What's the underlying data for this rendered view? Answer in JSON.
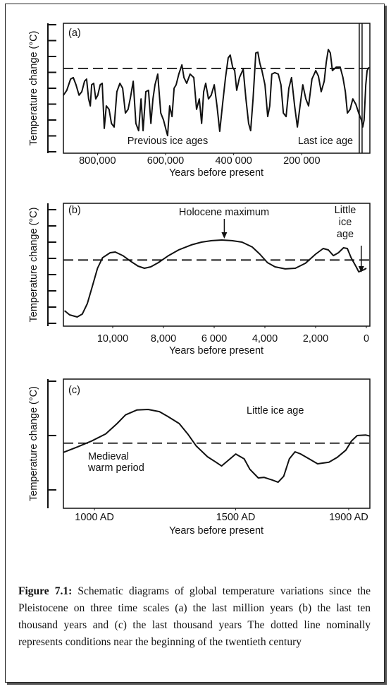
{
  "chart_data": [
    {
      "type": "line",
      "panel": "(a)",
      "ylabel": "Temperature change (°C)",
      "xlabel": "Years before present",
      "color": "#111111",
      "xlim": [
        900000,
        0
      ],
      "ylim": [
        0,
        8
      ],
      "xticks": [
        {
          "value": 800000,
          "label": "800,000"
        },
        {
          "value": 600000,
          "label": "600,000"
        },
        {
          "value": 400000,
          "label": "400 000"
        },
        {
          "value": 200000,
          "label": "200 000"
        }
      ],
      "yticks": [
        0,
        1,
        2,
        3,
        4,
        5,
        6,
        7,
        8
      ],
      "reference_y": 5.25,
      "vline_x": 27000,
      "annotations": [
        {
          "text": "Previous ice ages"
        },
        {
          "text": "Last ice age"
        }
      ],
      "x": [
        900000,
        890000,
        879000,
        871000,
        863000,
        854000,
        846000,
        838000,
        832000,
        826000,
        821000,
        817000,
        811000,
        805000,
        799000,
        792000,
        786000,
        780000,
        774000,
        766000,
        759000,
        751000,
        743000,
        734000,
        726000,
        718000,
        710000,
        703000,
        695000,
        687000,
        679000,
        672000,
        666000,
        658000,
        650000,
        643000,
        637000,
        631000,
        623000,
        614000,
        606000,
        598000,
        594000,
        588000,
        581000,
        575000,
        569000,
        561000,
        552000,
        546000,
        538000,
        528000,
        517000,
        509000,
        501000,
        494000,
        488000,
        482000,
        474000,
        466000,
        457000,
        449000,
        441000,
        432000,
        424000,
        416000,
        410000,
        403000,
        397000,
        391000,
        383000,
        372000,
        364000,
        356000,
        350000,
        343000,
        335000,
        329000,
        323000,
        317000,
        308000,
        300000,
        294000,
        288000,
        279000,
        269000,
        261000,
        254000,
        246000,
        238000,
        230000,
        221000,
        213000,
        205000,
        197000,
        188000,
        180000,
        170000,
        159000,
        151000,
        143000,
        134000,
        128000,
        122000,
        116000,
        110000,
        99000,
        87000,
        79000,
        72000,
        66000,
        58000,
        50000,
        41000,
        33000,
        25000,
        21000,
        17000,
        12000,
        8000,
        2000
      ],
      "values": [
        3.56,
        3.87,
        4.58,
        4.67,
        4.22,
        3.56,
        3.78,
        4.44,
        4.58,
        3.33,
        2.89,
        4.22,
        4.31,
        3.33,
        3.56,
        4.22,
        4.31,
        1.47,
        2.89,
        2.67,
        1.78,
        1.56,
        3.78,
        4.31,
        4.0,
        2.44,
        2.67,
        3.42,
        4.44,
        1.78,
        1.33,
        3.33,
        1.33,
        3.78,
        3.87,
        1.78,
        3.33,
        4.22,
        4.89,
        2.44,
        2.0,
        1.33,
        1.02,
        2.89,
        2.22,
        4.0,
        4.22,
        4.89,
        5.47,
        4.67,
        4.31,
        4.89,
        4.67,
        2.67,
        3.33,
        1.78,
        3.78,
        4.31,
        3.33,
        3.56,
        4.22,
        2.89,
        1.29,
        3.11,
        4.67,
        5.91,
        6.09,
        5.33,
        5.11,
        3.87,
        4.67,
        5.2,
        3.33,
        1.78,
        1.33,
        3.33,
        6.22,
        6.27,
        5.56,
        5.11,
        4.22,
        2.22,
        2.89,
        4.89,
        4.98,
        4.89,
        4.22,
        2.44,
        2.22,
        4.0,
        4.67,
        2.89,
        1.56,
        2.89,
        4.22,
        3.33,
        2.89,
        4.58,
        5.11,
        4.76,
        3.78,
        4.44,
        5.64,
        6.44,
        6.22,
        5.11,
        5.33,
        5.33,
        4.67,
        3.78,
        2.44,
        2.67,
        3.33,
        2.98,
        2.44,
        2.0,
        1.56,
        2.0,
        4.22,
        5.11,
        5.33
      ]
    },
    {
      "type": "line",
      "panel": "(b)",
      "ylabel": "Temperature change (°C)",
      "xlabel": "Years before present",
      "color": "#111111",
      "xlim": [
        12000,
        0
      ],
      "ylim": [
        0,
        7
      ],
      "xticks": [
        {
          "value": 10000,
          "label": "10,000"
        },
        {
          "value": 8000,
          "label": "8,000"
        },
        {
          "value": 6000,
          "label": "6 000"
        },
        {
          "value": 4000,
          "label": "4,000"
        },
        {
          "value": 2000,
          "label": "2,000"
        },
        0
      ],
      "yticks": [
        0,
        1,
        2,
        3,
        4,
        5,
        6,
        7
      ],
      "reference_y": 3.9,
      "annotations": [
        {
          "text": "Holocene maximum",
          "x": 5600
        },
        {
          "lines": [
            "Little",
            "ice",
            "age"
          ],
          "x": 200
        }
      ],
      "x": [
        11900,
        11700,
        11400,
        11200,
        11000,
        10800,
        10600,
        10400,
        10100,
        9900,
        9600,
        9300,
        9000,
        8750,
        8500,
        8200,
        7800,
        7400,
        6900,
        6500,
        6100,
        5700,
        5300,
        4900,
        4500,
        4200,
        3900,
        3600,
        3200,
        2800,
        2400,
        2000,
        1700,
        1500,
        1300,
        1100,
        900,
        750,
        600,
        400,
        300,
        100,
        0
      ],
      "values": [
        0.78,
        0.52,
        0.39,
        0.57,
        1.22,
        2.3,
        3.39,
        4.04,
        4.35,
        4.39,
        4.17,
        3.83,
        3.52,
        3.39,
        3.48,
        3.74,
        4.17,
        4.52,
        4.83,
        5.0,
        5.09,
        5.13,
        5.09,
        5.0,
        4.7,
        4.26,
        3.74,
        3.48,
        3.35,
        3.39,
        3.7,
        4.26,
        4.61,
        4.52,
        4.17,
        4.35,
        4.65,
        4.61,
        4.04,
        3.48,
        3.17,
        3.3,
        3.39
      ]
    },
    {
      "type": "line",
      "panel": "(c)",
      "ylabel": "Temperature change (°C)",
      "xlabel": "Years before present",
      "color": "#111111",
      "xlim": [
        890,
        1975
      ],
      "ylim": [
        -0.3,
        2
      ],
      "xticks": [
        {
          "value": 1000,
          "label": "1000 AD"
        },
        {
          "value": 1500,
          "label": "1500 AD"
        },
        {
          "value": 1900,
          "label": "1900 AD"
        }
      ],
      "yticks": [
        0,
        1,
        2
      ],
      "reference_y": 0.86,
      "annotations": [
        {
          "text": "Little ice age"
        },
        {
          "lines": [
            "Medieval",
            "warm period"
          ]
        }
      ],
      "x": [
        890,
        940,
        990,
        1040,
        1080,
        1110,
        1150,
        1190,
        1230,
        1260,
        1300,
        1330,
        1360,
        1400,
        1430,
        1450,
        1480,
        1500,
        1530,
        1550,
        1580,
        1600,
        1630,
        1650,
        1670,
        1690,
        1710,
        1730,
        1760,
        1790,
        1830,
        1860,
        1890,
        1910,
        1930,
        1960,
        1975
      ],
      "values": [
        0.69,
        0.79,
        0.9,
        1.03,
        1.22,
        1.38,
        1.47,
        1.48,
        1.44,
        1.35,
        1.22,
        1.03,
        0.81,
        0.61,
        0.51,
        0.44,
        0.57,
        0.66,
        0.57,
        0.38,
        0.22,
        0.23,
        0.18,
        0.14,
        0.25,
        0.57,
        0.7,
        0.66,
        0.57,
        0.48,
        0.51,
        0.6,
        0.73,
        0.9,
        1.0,
        1.01,
        0.99
      ]
    }
  ],
  "caption": {
    "label": "Figure 7.1:",
    "text": "Schematic diagrams of global temperature variations since the Pleistocene on three time scales (a) the last million years (b) the last ten thousand years and (c) the last thousand years The dotted line nominally represents conditions near the beginning of the twentieth century"
  }
}
